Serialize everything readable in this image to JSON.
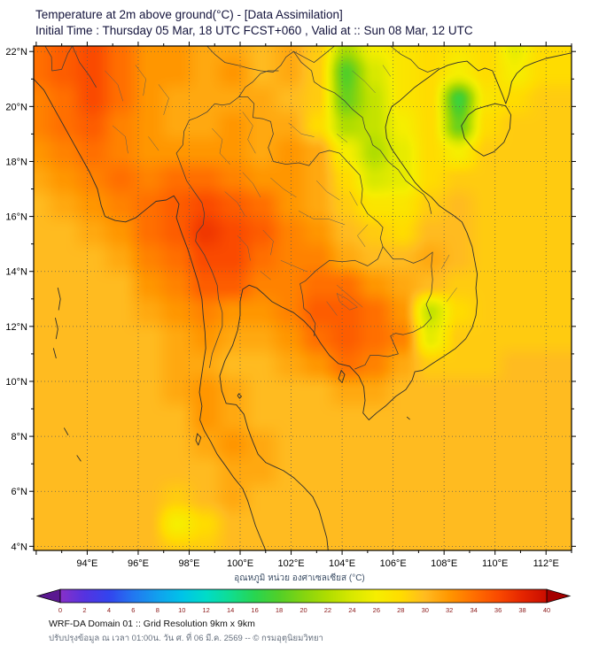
{
  "header": {
    "title": "Temperature at 2m above ground(°C) - [Data Assimilation]",
    "subtitle": "Initial Time : Thursday 05 Mar, 18 UTC FCST+060 , Valid at :: Sun 08 Mar, 12 UTC"
  },
  "chart_data": {
    "type": "heatmap",
    "title": "Temperature at 2m above ground (°C)",
    "region": "Thailand / Indochina",
    "lon_range": [
      91.9,
      113.0
    ],
    "lat_range": [
      3.85,
      22.2
    ],
    "x_ticks": [
      94,
      96,
      98,
      100,
      102,
      104,
      106,
      108,
      110,
      112
    ],
    "x_tick_labels": [
      "94°E",
      "96°E",
      "98°E",
      "100°E",
      "102°E",
      "104°E",
      "106°E",
      "108°E",
      "110°E",
      "112°E"
    ],
    "y_ticks": [
      4,
      6,
      8,
      10,
      12,
      14,
      16,
      18,
      20,
      22
    ],
    "y_tick_labels": [
      "4°N",
      "6°N",
      "8°N",
      "10°N",
      "12°N",
      "14°N",
      "16°N",
      "18°N",
      "20°N",
      "22°N"
    ],
    "grid": {
      "units": "°C",
      "lon_start": 92.0,
      "lon_step": 1.105,
      "lat_start": 22.2,
      "lat_step": -0.966,
      "values": [
        [
          34,
          35,
          36,
          34,
          32,
          32,
          31,
          31,
          30,
          31,
          29,
          22,
          26,
          27,
          28,
          27,
          28,
          25,
          28,
          28
        ],
        [
          34,
          35,
          36,
          34,
          32,
          32,
          31,
          32,
          30,
          31,
          29,
          18,
          24,
          27,
          28,
          26,
          28,
          26,
          28,
          28
        ],
        [
          33,
          34,
          36,
          34,
          32,
          31,
          31,
          31,
          31,
          30,
          29,
          19,
          23,
          27,
          28,
          17,
          27,
          28,
          29,
          29
        ],
        [
          33,
          34,
          35,
          33,
          32,
          31,
          31,
          32,
          31,
          31,
          28,
          22,
          23,
          26,
          28,
          19,
          28,
          29,
          29,
          29
        ],
        [
          32,
          33,
          34,
          33,
          32,
          32,
          32,
          32,
          31,
          32,
          31,
          26,
          22,
          25,
          28,
          26,
          29,
          29,
          29,
          29
        ],
        [
          31,
          32,
          33,
          34,
          33,
          34,
          34,
          33,
          32,
          32,
          31,
          28,
          24,
          25,
          28,
          29,
          29,
          29,
          29,
          29
        ],
        [
          30,
          31,
          32,
          33,
          34,
          35,
          36,
          35,
          34,
          32,
          31,
          29,
          27,
          27,
          29,
          30,
          29,
          29,
          29,
          29
        ],
        [
          30,
          30,
          31,
          32,
          34,
          35,
          37,
          36,
          35,
          33,
          32,
          30,
          29,
          28,
          30,
          30,
          29,
          29,
          29,
          29
        ],
        [
          30,
          30,
          30,
          31,
          33,
          34,
          36,
          36,
          34,
          33,
          33,
          31,
          30,
          30,
          31,
          30,
          29,
          29,
          29,
          29
        ],
        [
          30,
          30,
          30,
          30,
          32,
          33,
          35,
          35,
          33,
          33,
          34,
          34,
          32,
          31,
          30,
          29,
          29,
          29,
          29,
          29
        ],
        [
          30,
          30,
          30,
          30,
          31,
          32,
          33,
          32,
          32,
          33,
          35,
          35,
          34,
          32,
          23,
          28,
          29,
          29,
          29,
          29
        ],
        [
          30,
          30,
          30,
          30,
          30,
          31,
          32,
          31,
          31,
          32,
          34,
          35,
          34,
          33,
          25,
          29,
          29,
          29,
          29,
          29
        ],
        [
          30,
          30,
          30,
          30,
          30,
          31,
          31,
          30,
          30,
          31,
          32,
          34,
          33,
          31,
          29,
          29,
          29,
          30,
          30,
          30
        ],
        [
          30,
          30,
          30,
          30,
          30,
          31,
          32,
          31,
          30,
          30,
          30,
          31,
          31,
          30,
          30,
          30,
          30,
          30,
          30,
          30
        ],
        [
          30,
          30,
          30,
          30,
          30,
          30,
          32,
          31,
          30,
          30,
          30,
          30,
          30,
          30,
          30,
          30,
          30,
          30,
          30,
          30
        ],
        [
          30,
          30,
          30,
          30,
          30,
          30,
          31,
          32,
          31,
          30,
          30,
          30,
          30,
          30,
          30,
          30,
          30,
          30,
          30,
          30
        ],
        [
          30,
          30,
          30,
          30,
          30,
          30,
          30,
          31,
          31,
          30,
          30,
          30,
          30,
          30,
          30,
          30,
          30,
          30,
          30,
          30
        ],
        [
          30,
          30,
          30,
          30,
          30,
          29,
          30,
          31,
          30,
          30,
          30,
          30,
          30,
          30,
          30,
          30,
          30,
          30,
          30,
          30
        ],
        [
          30,
          30,
          30,
          30,
          30,
          26,
          28,
          30,
          30,
          30,
          30,
          30,
          30,
          30,
          30,
          30,
          30,
          30,
          30,
          30
        ],
        [
          30,
          30,
          30,
          30,
          30,
          29,
          29,
          30,
          30,
          30,
          30,
          30,
          30,
          30,
          30,
          30,
          30,
          30,
          30,
          30
        ]
      ]
    },
    "colorbar": {
      "label": "อุณหภูมิ หน่วย องศาเซลเซียส (°C)",
      "min": 0,
      "max": 40,
      "ticks": [
        0,
        2,
        4,
        6,
        8,
        10,
        12,
        14,
        16,
        18,
        20,
        22,
        24,
        26,
        28,
        30,
        32,
        34,
        36,
        38,
        40
      ],
      "palette": [
        {
          "t": 0,
          "c": "#8830c8"
        },
        {
          "t": 2,
          "c": "#5533e0"
        },
        {
          "t": 4,
          "c": "#3344ee"
        },
        {
          "t": 6,
          "c": "#2277f0"
        },
        {
          "t": 8,
          "c": "#11a0ee"
        },
        {
          "t": 10,
          "c": "#00c3e8"
        },
        {
          "t": 12,
          "c": "#00dcc8"
        },
        {
          "t": 14,
          "c": "#10dd90"
        },
        {
          "t": 16,
          "c": "#28d550"
        },
        {
          "t": 18,
          "c": "#52cf28"
        },
        {
          "t": 20,
          "c": "#84d410"
        },
        {
          "t": 22,
          "c": "#b0dd00"
        },
        {
          "t": 24,
          "c": "#d8e800"
        },
        {
          "t": 26,
          "c": "#f6ee00"
        },
        {
          "t": 28,
          "c": "#ffdc00"
        },
        {
          "t": 30,
          "c": "#ffbb20"
        },
        {
          "t": 32,
          "c": "#ff9600"
        },
        {
          "t": 34,
          "c": "#ff6f00"
        },
        {
          "t": 36,
          "c": "#fa4a00"
        },
        {
          "t": 38,
          "c": "#e52500"
        },
        {
          "t": 40,
          "c": "#c90d00"
        }
      ],
      "under_color": "#5a1890",
      "over_color": "#a50000",
      "tick_color": "#8b1a1a",
      "label_color": "#3d4f66"
    }
  },
  "footer": {
    "line1": "WRF-DA Domain 01 :: Grid Resolution 9km x 9km",
    "line2": "ปรับปรุงข้อมูล ณ เวลา 01:00น. วัน ศ. ที่ 06 มี.ค. 2569 -- © กรมอุตุนิยมวิทยา"
  }
}
